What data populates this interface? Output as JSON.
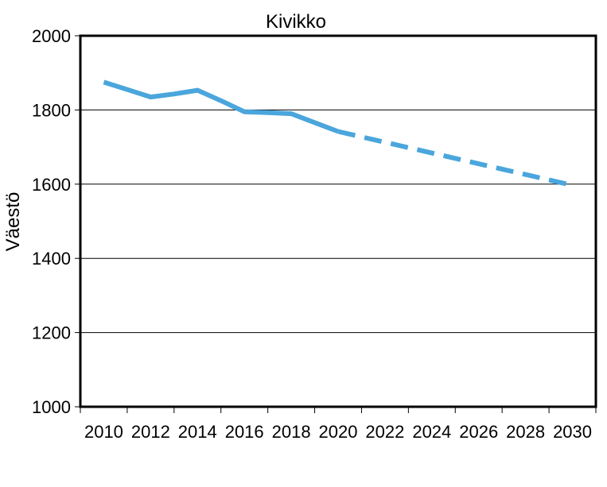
{
  "chart_data": {
    "type": "line",
    "title": "Kivikko",
    "xlabel": "",
    "ylabel": "Väestö",
    "xlim": [
      2009,
      2031
    ],
    "ylim": [
      1000,
      2000
    ],
    "x_ticks": [
      "2010",
      "2012",
      "2014",
      "2016",
      "2018",
      "2020",
      "2022",
      "2024",
      "2026",
      "2028",
      "2030"
    ],
    "y_ticks": [
      "1000",
      "1200",
      "1400",
      "1600",
      "1800",
      "2000"
    ],
    "grid": "horizontal",
    "legend": "none",
    "series": [
      {
        "style": "solid",
        "color": "#4aa6dc",
        "x": [
          2010,
          2011,
          2012,
          2013,
          2014,
          2015,
          2016,
          2017,
          2018,
          2019,
          2020
        ],
        "y": [
          1875,
          1855,
          1835,
          1843,
          1853,
          1825,
          1795,
          1793,
          1790,
          1766,
          1742
        ]
      },
      {
        "style": "dashed",
        "color": "#4aa6dc",
        "x": [
          2020,
          2030
        ],
        "y": [
          1742,
          1597
        ]
      }
    ]
  }
}
